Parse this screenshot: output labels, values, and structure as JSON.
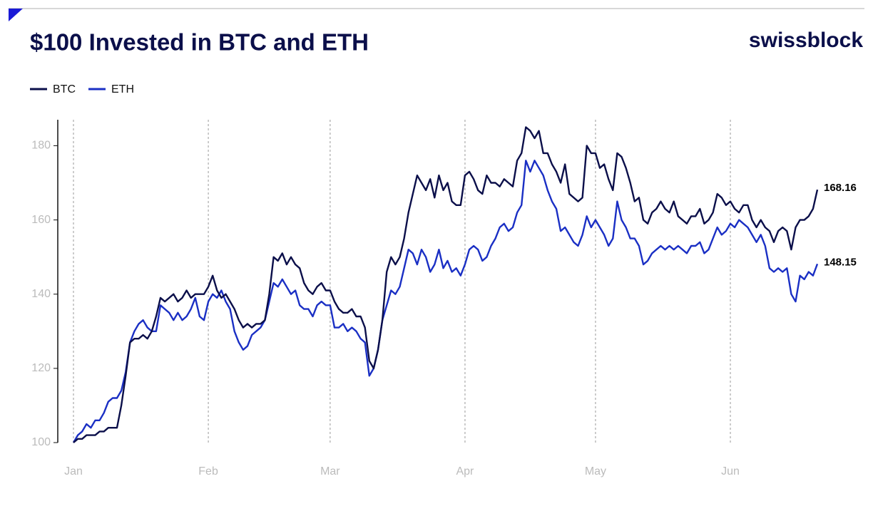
{
  "chart_data": {
    "type": "line",
    "title": "$100 Invested in BTC and ETH",
    "brand": "swissblock",
    "categories": [
      "Jan",
      null,
      null,
      null,
      null,
      null,
      null,
      null,
      null,
      null,
      null,
      null,
      null,
      null,
      null,
      null,
      null,
      null,
      null,
      null,
      null,
      null,
      null,
      null,
      null,
      null,
      null,
      null,
      null,
      null,
      null,
      "Feb",
      null,
      null,
      null,
      null,
      null,
      null,
      null,
      null,
      null,
      null,
      null,
      null,
      null,
      null,
      null,
      null,
      null,
      null,
      null,
      null,
      null,
      null,
      null,
      null,
      null,
      null,
      null,
      "Mar",
      null,
      null,
      null,
      null,
      null,
      null,
      null,
      null,
      null,
      null,
      null,
      null,
      null,
      null,
      null,
      null,
      null,
      null,
      null,
      null,
      null,
      null,
      null,
      null,
      null,
      null,
      null,
      null,
      null,
      null,
      "Apr",
      null,
      null,
      null,
      null,
      null,
      null,
      null,
      null,
      null,
      null,
      null,
      null,
      null,
      null,
      null,
      null,
      null,
      null,
      null,
      null,
      null,
      null,
      null,
      null,
      null,
      null,
      null,
      null,
      null,
      "May",
      null,
      null,
      null,
      null,
      null,
      null,
      null,
      null,
      null,
      null,
      null,
      null,
      null,
      null,
      null,
      null,
      null,
      null,
      null,
      null,
      null,
      null,
      null,
      null,
      null,
      null,
      null,
      null,
      null,
      null,
      "Jun",
      null,
      null,
      null,
      null,
      null,
      null,
      null,
      null,
      null,
      null,
      null,
      null,
      null,
      null,
      null,
      null,
      null,
      null,
      null,
      null
    ],
    "series": [
      {
        "name": "BTC",
        "color": "#0b0f4a",
        "values": [
          100,
          101,
          101,
          102,
          102,
          102,
          103,
          103,
          104,
          104,
          104,
          110,
          118,
          127,
          128,
          128,
          129,
          128,
          130,
          134,
          139,
          138,
          139,
          140,
          138,
          139,
          141,
          139,
          140,
          140,
          140,
          142,
          145,
          141,
          139,
          140,
          138,
          136,
          133,
          131,
          132,
          131,
          132,
          132,
          133,
          140,
          150,
          149,
          151,
          148,
          150,
          148,
          147,
          143,
          141,
          140,
          142,
          143,
          141,
          141,
          138,
          136,
          135,
          135,
          136,
          134,
          134,
          131,
          122,
          120,
          125,
          133,
          146,
          150,
          148,
          150,
          155,
          162,
          167,
          172,
          170,
          168,
          171,
          166,
          172,
          168,
          170,
          165,
          164,
          164,
          172,
          173,
          171,
          168,
          167,
          172,
          170,
          170,
          169,
          171,
          170,
          169,
          176,
          178,
          185,
          184,
          182,
          184,
          178,
          178,
          175,
          173,
          170,
          175,
          167,
          166,
          165,
          166,
          180,
          178,
          178,
          174,
          175,
          171,
          168,
          178,
          177,
          174,
          170,
          165,
          166,
          160,
          159,
          162,
          163,
          165,
          163,
          162,
          165,
          161,
          160,
          159,
          161,
          161,
          163,
          159,
          160,
          162,
          167,
          166,
          164,
          165,
          163,
          162,
          164,
          164,
          160,
          158,
          160,
          158,
          157,
          154,
          157,
          158,
          157,
          152,
          158,
          160,
          160,
          161,
          163,
          168.16
        ]
      },
      {
        "name": "ETH",
        "color": "#1a2fc4",
        "values": [
          100,
          102,
          103,
          105,
          104,
          106,
          106,
          108,
          111,
          112,
          112,
          114,
          119,
          127,
          130,
          132,
          133,
          131,
          130,
          130,
          137,
          136,
          135,
          133,
          135,
          133,
          134,
          136,
          139,
          134,
          133,
          138,
          140,
          139,
          141,
          138,
          136,
          130,
          127,
          125,
          126,
          129,
          130,
          131,
          133,
          138,
          143,
          142,
          144,
          142,
          140,
          141,
          137,
          136,
          136,
          134,
          137,
          138,
          137,
          137,
          131,
          131,
          132,
          130,
          131,
          130,
          128,
          127,
          118,
          120,
          125,
          133,
          137,
          141,
          140,
          142,
          147,
          152,
          151,
          148,
          152,
          150,
          146,
          148,
          152,
          147,
          149,
          146,
          147,
          145,
          148,
          152,
          153,
          152,
          149,
          150,
          153,
          155,
          158,
          159,
          157,
          158,
          162,
          164,
          176,
          173,
          176,
          174,
          172,
          168,
          165,
          163,
          157,
          158,
          156,
          154,
          153,
          156,
          161,
          158,
          160,
          158,
          156,
          153,
          155,
          165,
          160,
          158,
          155,
          155,
          153,
          148,
          149,
          151,
          152,
          153,
          152,
          153,
          152,
          153,
          152,
          151,
          153,
          153,
          154,
          151,
          152,
          155,
          158,
          156,
          157,
          159,
          158,
          160,
          159,
          158,
          156,
          154,
          156,
          153,
          147,
          146,
          147,
          146,
          147,
          140,
          138,
          145,
          144,
          146,
          145,
          148.15
        ]
      }
    ],
    "ylim": [
      100,
      187
    ],
    "yticks": [
      100,
      120,
      140,
      160,
      180
    ],
    "grid": true,
    "legend": "top-left"
  }
}
